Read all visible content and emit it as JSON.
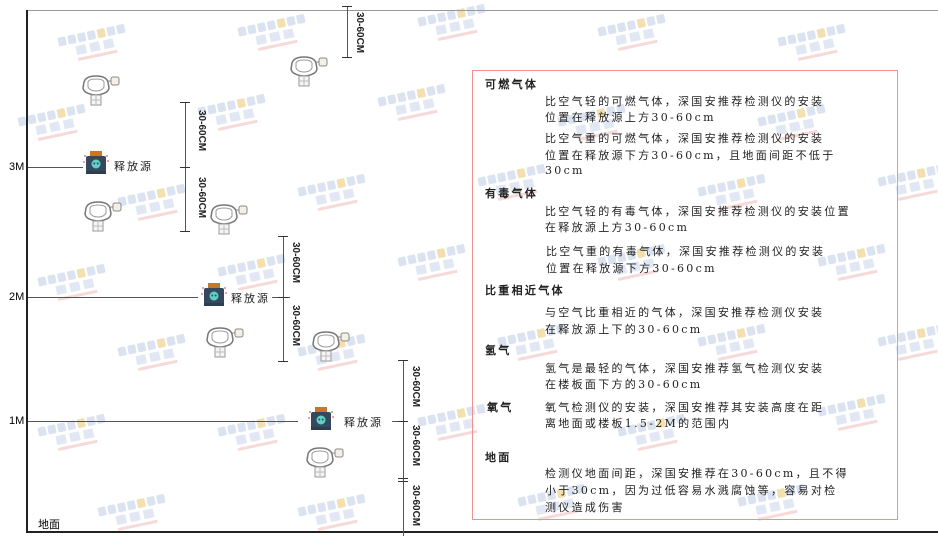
{
  "watermark": {
    "brand": "SINGOAN",
    "cn": "深国安"
  },
  "levels": {
    "m3": "3M",
    "m2": "2M",
    "m1": "1M",
    "ground": "地面"
  },
  "source_label": "释放源",
  "dimension_label": "30-60CM",
  "legend": {
    "combustible": {
      "title": "可燃气体",
      "lighter": [
        "比空气轻的可燃气体，深国安推荐检测仪的安装",
        "位置在释放源上方30-60cm"
      ],
      "heavier": [
        "比空气重的可燃气体，深国安推荐检测仪的安装",
        "位置在释放源下方30-60cm，且地面间距不低于",
        "30cm"
      ]
    },
    "toxic": {
      "title": "有毒气体",
      "lighter": [
        "比空气轻的有毒气体，深国安推荐检测仪的安装位置",
        "在释放源上方30-60cm"
      ],
      "heavier": [
        "比空气重的有毒气体，深国安推荐检测仪的安装",
        "位置在释放源下方30-60cm"
      ]
    },
    "similar": {
      "title": "比重相近气体",
      "text": [
        "与空气比重相近的气体，深国安推荐检测仪安装",
        "在释放源上下的30-60cm"
      ]
    },
    "hydrogen": {
      "title": "氢气",
      "text": [
        "氢气是最轻的气体，深国安推荐氢气检测仪安装",
        "在楼板面下方的30-60cm"
      ]
    },
    "oxygen": {
      "title": "氧气",
      "text": [
        "氧气检测仪的安装，深国安推荐其安装高度在距",
        "离地面或楼板1.5-2M的范围内"
      ]
    },
    "ground": {
      "title": "地面",
      "text": [
        "检测仪地面间距，深国安推荐在30-60cm，且不得",
        "小于30cm，因为过低容易水溅腐蚀等，容易对检",
        "测仪造成伤害"
      ]
    }
  },
  "colors": {
    "border": "#f09090",
    "source_body": "#34495e",
    "source_cap": "#c8762a",
    "skull": "#5fd0c8"
  }
}
